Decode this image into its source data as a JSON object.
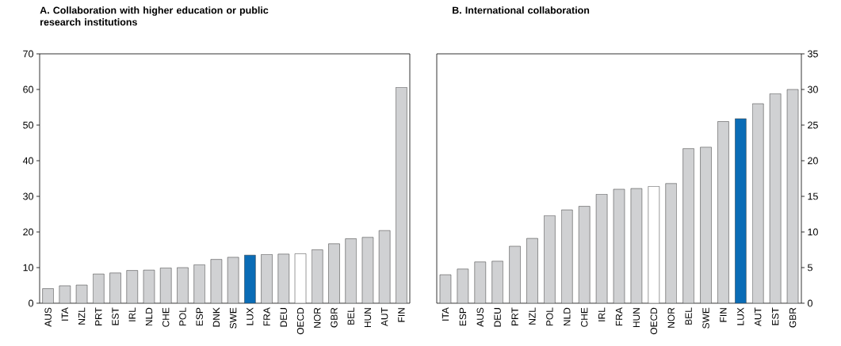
{
  "chart_data": [
    {
      "type": "bar",
      "title": "A. Collaboration with higher education or public research institutions",
      "categories": [
        "AUS",
        "ITA",
        "NZL",
        "PRT",
        "EST",
        "IRL",
        "NLD",
        "CHE",
        "POL",
        "ESP",
        "DNK",
        "SWE",
        "LUX",
        "FRA",
        "DEU",
        "OECD",
        "NOR",
        "GBR",
        "BEL",
        "HUN",
        "AUT",
        "FIN"
      ],
      "values": [
        4.1,
        4.9,
        5.1,
        8.2,
        8.5,
        9.2,
        9.3,
        9.9,
        10.0,
        10.8,
        12.3,
        12.9,
        13.5,
        13.7,
        13.8,
        13.9,
        15.0,
        16.7,
        18.1,
        18.5,
        20.4,
        60.6
      ],
      "colors": [
        "#d0d1d3",
        "#d0d1d3",
        "#d0d1d3",
        "#d0d1d3",
        "#d0d1d3",
        "#d0d1d3",
        "#d0d1d3",
        "#d0d1d3",
        "#d0d1d3",
        "#d0d1d3",
        "#d0d1d3",
        "#d0d1d3",
        "#0a6cb6",
        "#d0d1d3",
        "#d0d1d3",
        "#ffffff",
        "#d0d1d3",
        "#d0d1d3",
        "#d0d1d3",
        "#d0d1d3",
        "#d0d1d3",
        "#d0d1d3"
      ],
      "ylim": [
        0,
        70
      ],
      "yticks": [
        0,
        10,
        20,
        30,
        40,
        50,
        60,
        70
      ]
    },
    {
      "type": "bar",
      "title": "B. International collaboration",
      "categories": [
        "ITA",
        "ESP",
        "AUS",
        "DEU",
        "PRT",
        "NZL",
        "POL",
        "NLD",
        "CHE",
        "IRL",
        "FRA",
        "HUN",
        "OECD",
        "NOR",
        "BEL",
        "SWE",
        "FIN",
        "LUX",
        "AUT",
        "EST",
        "GBR"
      ],
      "values": [
        4.0,
        4.8,
        5.8,
        5.9,
        8.0,
        9.1,
        12.3,
        13.1,
        13.6,
        15.3,
        16.0,
        16.1,
        16.4,
        16.8,
        21.7,
        21.9,
        25.5,
        25.9,
        28.0,
        29.4,
        30.0
      ],
      "colors": [
        "#d0d1d3",
        "#d0d1d3",
        "#d0d1d3",
        "#d0d1d3",
        "#d0d1d3",
        "#d0d1d3",
        "#d0d1d3",
        "#d0d1d3",
        "#d0d1d3",
        "#d0d1d3",
        "#d0d1d3",
        "#d0d1d3",
        "#ffffff",
        "#d0d1d3",
        "#d0d1d3",
        "#d0d1d3",
        "#d0d1d3",
        "#0a6cb6",
        "#d0d1d3",
        "#d0d1d3",
        "#d0d1d3"
      ],
      "ylim": [
        0,
        35
      ],
      "yticks": [
        0,
        5,
        10,
        15,
        20,
        25,
        30,
        35
      ]
    }
  ]
}
